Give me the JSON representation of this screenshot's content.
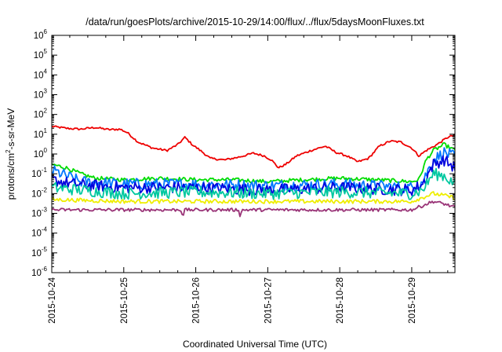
{
  "chart_data": {
    "type": "line",
    "title": "/data/run/goesPlots/archive/2015-10-29/14:00/flux/../flux/5daysMoonFluxes.txt",
    "xlabel": "Coordinated Universal Time (UTC)",
    "ylabel": "protons/cm2-s-sr-MeV",
    "ylabel_parts": {
      "pre": "protons/cm",
      "sup": "2",
      "post": "-s-sr-MeV"
    },
    "x_unit": "days since 2015-10-24",
    "xlim": [
      0,
      5.6
    ],
    "ylim_log10": [
      -6,
      6
    ],
    "yscale": "log",
    "grid": false,
    "x_ticks": [
      {
        "value": 0,
        "label": "2015-10-24"
      },
      {
        "value": 1,
        "label": "2015-10-25"
      },
      {
        "value": 2,
        "label": "2015-10-26"
      },
      {
        "value": 3,
        "label": "2015-10-27"
      },
      {
        "value": 4,
        "label": "2015-10-28"
      },
      {
        "value": 5,
        "label": "2015-10-29"
      }
    ],
    "y_ticks": [
      {
        "exp": "-6",
        "label": "10"
      },
      {
        "exp": "-5",
        "label": "10"
      },
      {
        "exp": "-4",
        "label": "10"
      },
      {
        "exp": "-3",
        "label": "10"
      },
      {
        "exp": "-2",
        "label": "10"
      },
      {
        "exp": "-1",
        "label": "10"
      },
      {
        "exp": "0",
        "label": "10"
      },
      {
        "exp": "1",
        "label": "10"
      },
      {
        "exp": "2",
        "label": "10"
      },
      {
        "exp": "3",
        "label": "10"
      },
      {
        "exp": "4",
        "label": "10"
      },
      {
        "exp": "5",
        "label": "10"
      },
      {
        "exp": "6",
        "label": "10"
      }
    ],
    "series": [
      {
        "color": "#ee0000",
        "noise": 0.05,
        "points": [
          [
            0,
            25
          ],
          [
            0.2,
            20
          ],
          [
            0.4,
            18
          ],
          [
            0.6,
            22
          ],
          [
            0.8,
            17
          ],
          [
            0.95,
            18
          ],
          [
            1.05,
            12
          ],
          [
            1.2,
            4
          ],
          [
            1.4,
            2
          ],
          [
            1.6,
            1.5
          ],
          [
            1.75,
            3
          ],
          [
            1.85,
            7
          ],
          [
            1.95,
            3
          ],
          [
            2.1,
            1.2
          ],
          [
            2.2,
            0.6
          ],
          [
            2.4,
            0.5
          ],
          [
            2.6,
            0.7
          ],
          [
            2.8,
            1.1
          ],
          [
            2.95,
            0.8
          ],
          [
            3.05,
            0.5
          ],
          [
            3.15,
            0.2
          ],
          [
            3.25,
            0.3
          ],
          [
            3.4,
            0.8
          ],
          [
            3.6,
            1.5
          ],
          [
            3.8,
            2.5
          ],
          [
            3.95,
            1.2
          ],
          [
            4.1,
            0.8
          ],
          [
            4.25,
            0.4
          ],
          [
            4.4,
            0.6
          ],
          [
            4.55,
            2.5
          ],
          [
            4.7,
            4.5
          ],
          [
            4.85,
            4
          ],
          [
            5.0,
            2
          ],
          [
            5.1,
            0.8
          ],
          [
            5.2,
            1.5
          ],
          [
            5.35,
            3
          ],
          [
            5.5,
            7
          ],
          [
            5.6,
            9
          ]
        ]
      },
      {
        "color": "#00dd00",
        "noise": 0.1,
        "points": [
          [
            0,
            0.3
          ],
          [
            0.2,
            0.2
          ],
          [
            0.4,
            0.1
          ],
          [
            0.6,
            0.06
          ],
          [
            1.0,
            0.05
          ],
          [
            1.5,
            0.06
          ],
          [
            2.0,
            0.05
          ],
          [
            2.5,
            0.05
          ],
          [
            3.0,
            0.04
          ],
          [
            3.5,
            0.05
          ],
          [
            4.0,
            0.06
          ],
          [
            4.5,
            0.05
          ],
          [
            5.0,
            0.04
          ],
          [
            5.1,
            0.05
          ],
          [
            5.2,
            0.5
          ],
          [
            5.3,
            1.5
          ],
          [
            5.45,
            3
          ],
          [
            5.6,
            1.5
          ]
        ]
      },
      {
        "color": "#0077ff",
        "noise": 0.3,
        "points": [
          [
            0,
            0.15
          ],
          [
            0.2,
            0.08
          ],
          [
            0.4,
            0.04
          ],
          [
            1.0,
            0.03
          ],
          [
            2.0,
            0.03
          ],
          [
            3.0,
            0.025
          ],
          [
            4.0,
            0.03
          ],
          [
            5.0,
            0.02
          ],
          [
            5.15,
            0.04
          ],
          [
            5.3,
            0.5
          ],
          [
            5.45,
            1.2
          ],
          [
            5.6,
            0.7
          ]
        ]
      },
      {
        "color": "#0000dd",
        "noise": 0.3,
        "points": [
          [
            0,
            0.05
          ],
          [
            0.3,
            0.03
          ],
          [
            1.0,
            0.02
          ],
          [
            2.0,
            0.02
          ],
          [
            3.0,
            0.015
          ],
          [
            4.0,
            0.02
          ],
          [
            5.0,
            0.015
          ],
          [
            5.15,
            0.03
          ],
          [
            5.3,
            0.3
          ],
          [
            5.45,
            0.5
          ],
          [
            5.6,
            0.2
          ]
        ]
      },
      {
        "color": "#00c8a0",
        "noise": 0.3,
        "points": [
          [
            0,
            0.02
          ],
          [
            1.0,
            0.01
          ],
          [
            2.0,
            0.012
          ],
          [
            3.0,
            0.01
          ],
          [
            4.0,
            0.012
          ],
          [
            5.0,
            0.01
          ],
          [
            5.15,
            0.015
          ],
          [
            5.3,
            0.1
          ],
          [
            5.45,
            0.08
          ],
          [
            5.6,
            0.03
          ]
        ]
      },
      {
        "color": "#eeee00",
        "noise": 0.1,
        "points": [
          [
            0,
            0.005
          ],
          [
            1.0,
            0.004
          ],
          [
            2.0,
            0.004
          ],
          [
            3.0,
            0.004
          ],
          [
            4.0,
            0.004
          ],
          [
            5.0,
            0.004
          ],
          [
            5.3,
            0.01
          ],
          [
            5.45,
            0.008
          ],
          [
            5.6,
            0.006
          ]
        ]
      },
      {
        "color": "#993377",
        "noise": 0.08,
        "points": [
          [
            0,
            0.0015
          ],
          [
            1.0,
            0.0015
          ],
          [
            1.8,
            0.0015
          ],
          [
            1.82,
            0.0006
          ],
          [
            1.84,
            0.0015
          ],
          [
            2.6,
            0.0015
          ],
          [
            2.62,
            0.0006
          ],
          [
            2.64,
            0.0015
          ],
          [
            3.5,
            0.0015
          ],
          [
            4.0,
            0.0015
          ],
          [
            4.7,
            0.0015
          ],
          [
            5.0,
            0.0015
          ],
          [
            5.3,
            0.004
          ],
          [
            5.45,
            0.003
          ],
          [
            5.6,
            0.002
          ]
        ]
      }
    ]
  }
}
